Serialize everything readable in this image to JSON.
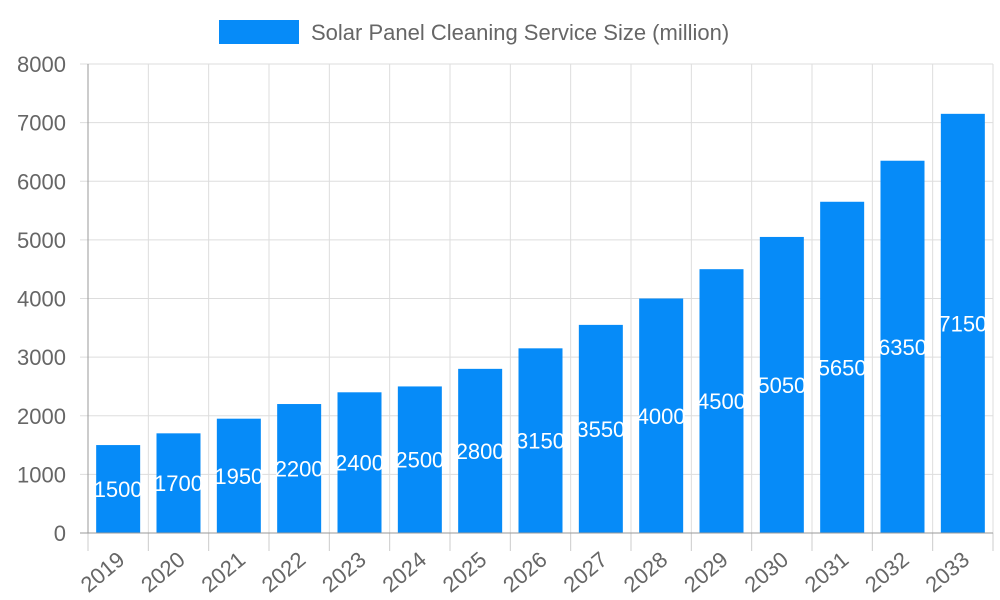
{
  "chart_data": {
    "type": "bar",
    "title": "",
    "xlabel": "",
    "ylabel": "",
    "categories": [
      "2019",
      "2020",
      "2021",
      "2022",
      "2023",
      "2024",
      "2025",
      "2026",
      "2027",
      "2028",
      "2029",
      "2030",
      "2031",
      "2032",
      "2033"
    ],
    "series": [
      {
        "name": "Solar Panel Cleaning Service Size (million)",
        "values": [
          1500,
          1700,
          1950,
          2200,
          2400,
          2500,
          2800,
          3150,
          3550,
          4000,
          4500,
          5050,
          5650,
          6350,
          7150
        ],
        "color": "#068bf8"
      }
    ],
    "ylim": [
      0,
      8000
    ],
    "yticks": [
      "0",
      "1000",
      "2000",
      "3000",
      "4000",
      "5000",
      "6000",
      "7000",
      "8000"
    ],
    "grid": true,
    "legend": "top",
    "data_labels": true
  }
}
